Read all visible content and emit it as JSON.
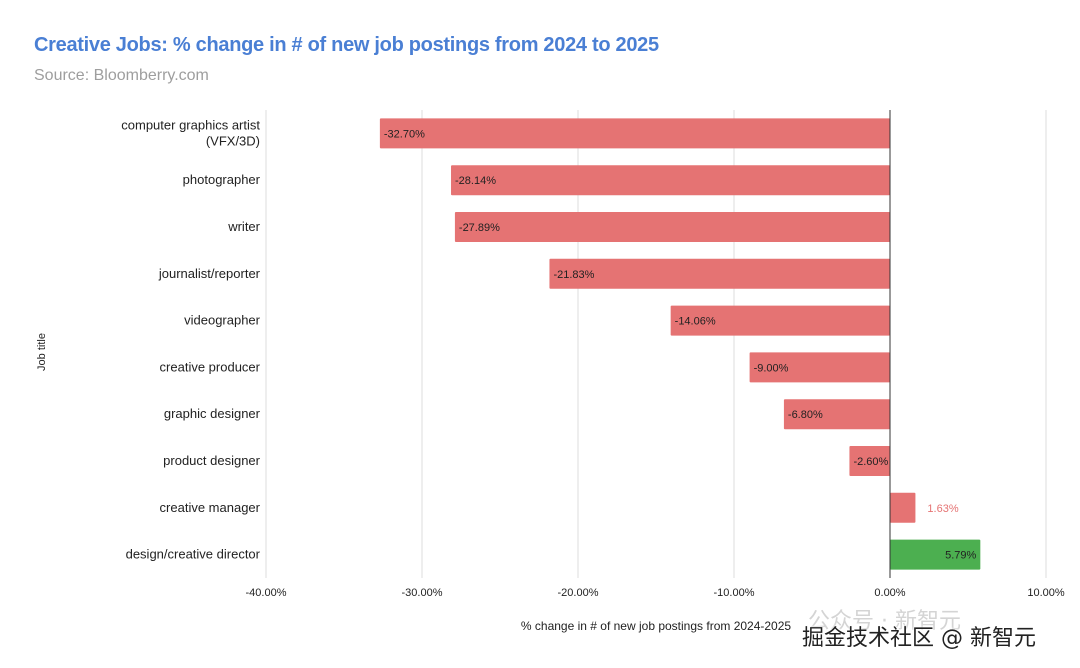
{
  "chart_data": {
    "type": "bar",
    "orientation": "horizontal",
    "title": "Creative Jobs: % change in # of new job postings from 2024 to 2025",
    "subtitle": "Source: Bloomberry.com",
    "xlabel": "% change in # of new job postings from 2024-2025",
    "ylabel": "Job title",
    "xlim": [
      -40,
      10
    ],
    "xticks": [
      "-40.00%",
      "-30.00%",
      "-20.00%",
      "-10.00%",
      "0.00%",
      "10.00%"
    ],
    "xtick_values": [
      -40,
      -30,
      -20,
      -10,
      0,
      10
    ],
    "grid": true,
    "categories": [
      [
        "computer graphics artist",
        "(VFX/3D)"
      ],
      [
        "photographer"
      ],
      [
        "writer"
      ],
      [
        "journalist/reporter"
      ],
      [
        "videographer"
      ],
      [
        "creative producer"
      ],
      [
        "graphic designer"
      ],
      [
        "product designer"
      ],
      [
        "creative manager"
      ],
      [
        "design/creative director"
      ]
    ],
    "values": [
      -32.7,
      -28.14,
      -27.89,
      -21.83,
      -14.06,
      -9.0,
      -6.8,
      -2.6,
      1.63,
      5.79
    ],
    "labels": [
      "-32.70%",
      "-28.14%",
      "-27.89%",
      "-21.83%",
      "-14.06%",
      "-9.00%",
      "-6.80%",
      "-2.60%",
      "1.63%",
      "5.79%"
    ],
    "colors": {
      "default": "#e57373",
      "highlight": "#4caf50",
      "highlight_index": 9,
      "outside_label": "#e57373"
    }
  },
  "watermark": {
    "line1": "公众号 · 新智元",
    "line2": "掘金技术社区 @ 新智元"
  }
}
